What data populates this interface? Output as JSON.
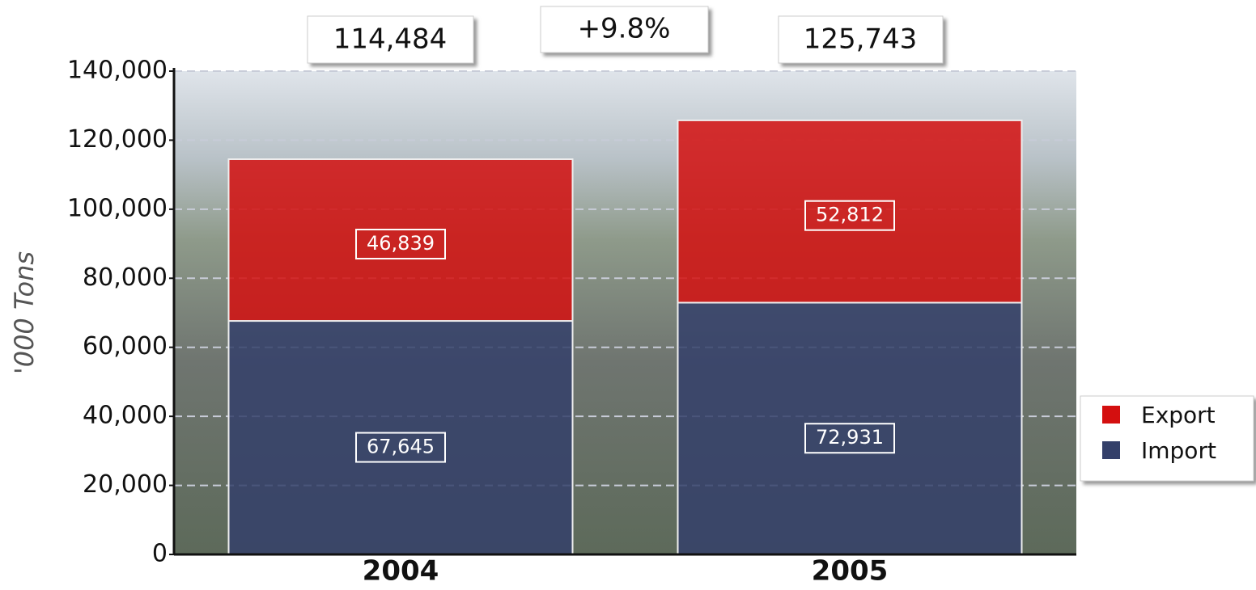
{
  "chart_data": {
    "type": "stacked-bar",
    "y_label": "'000 Tons",
    "categories": [
      "2004",
      "2005"
    ],
    "series": [
      {
        "name": "Export",
        "color": "#d40f0f",
        "values": [
          46839,
          52812
        ],
        "value_labels": [
          "46,839",
          "52,812"
        ]
      },
      {
        "name": "Import",
        "color": "#34406a",
        "values": [
          67645,
          72931
        ],
        "value_labels": [
          "67,645",
          "72,931"
        ]
      }
    ],
    "annotations": {
      "totals": [
        "114,484",
        "125,743"
      ],
      "change": "+9.8%"
    },
    "ylim": [
      0,
      140000
    ],
    "yticks": [
      0,
      {
        "value": 20000,
        "label": "20,000"
      },
      {
        "value": 40000,
        "label": "40,000"
      },
      {
        "value": 60000,
        "label": "60,000"
      },
      {
        "value": 80000,
        "label": "80,000"
      },
      {
        "value": 100000,
        "label": "100,000"
      },
      {
        "value": 120000,
        "label": "120,000"
      },
      {
        "value": 140000,
        "label": "140,000"
      }
    ],
    "grid": true,
    "legend_position": "right"
  }
}
